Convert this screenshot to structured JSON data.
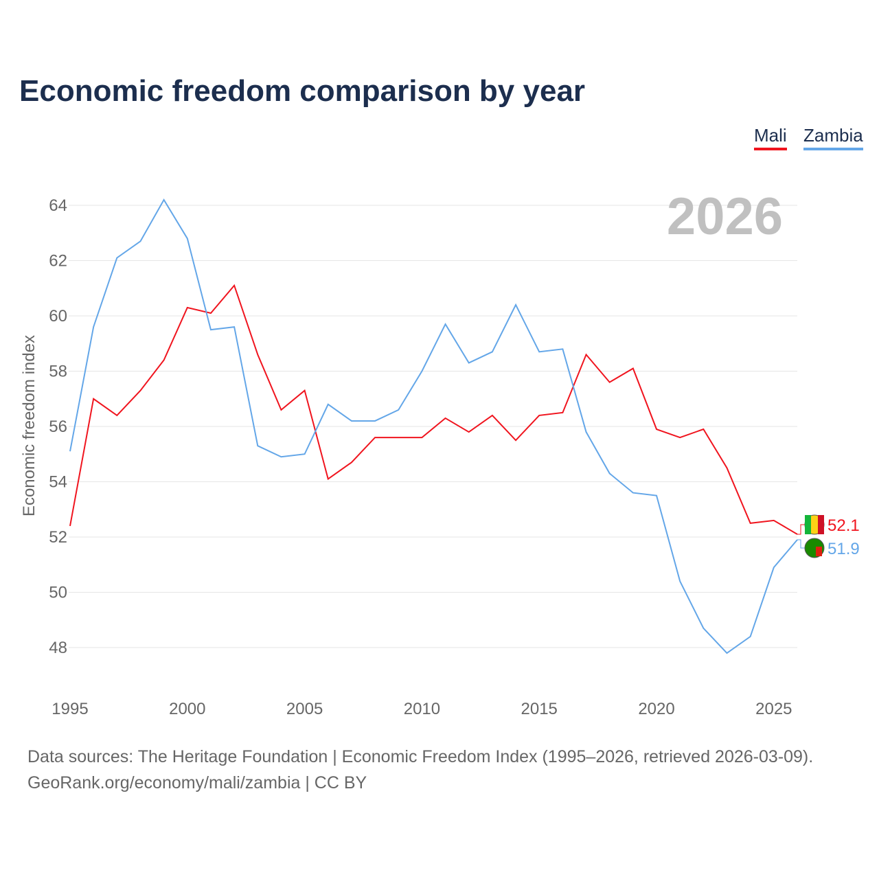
{
  "chart_data": {
    "type": "line",
    "title": "Economic freedom comparison by year",
    "xlabel": "",
    "ylabel": "Economic freedom index",
    "watermark_year": "2026",
    "xlim": [
      1995,
      2026
    ],
    "ylim": [
      47,
      65
    ],
    "x_ticks": [
      1995,
      2000,
      2005,
      2010,
      2015,
      2020,
      2025
    ],
    "y_ticks": [
      48,
      50,
      52,
      54,
      56,
      58,
      60,
      62,
      64
    ],
    "grid": true,
    "legend_position": "top-right",
    "x": [
      1995,
      1996,
      1997,
      1998,
      1999,
      2000,
      2001,
      2002,
      2003,
      2004,
      2005,
      2006,
      2007,
      2008,
      2009,
      2010,
      2011,
      2012,
      2013,
      2014,
      2015,
      2016,
      2017,
      2018,
      2019,
      2020,
      2021,
      2022,
      2023,
      2024,
      2025,
      2026
    ],
    "series": [
      {
        "name": "Mali",
        "color": "#f0141e",
        "end_label": "52.1",
        "values": [
          52.4,
          57.0,
          56.4,
          57.3,
          58.4,
          60.3,
          60.1,
          61.1,
          58.6,
          56.6,
          57.3,
          54.1,
          54.7,
          55.6,
          55.6,
          55.6,
          56.3,
          55.8,
          56.4,
          55.5,
          56.4,
          56.5,
          58.6,
          57.6,
          58.1,
          55.9,
          55.6,
          55.9,
          54.5,
          52.5,
          52.6,
          52.1
        ]
      },
      {
        "name": "Zambia",
        "color": "#63a6e8",
        "end_label": "51.9",
        "values": [
          55.1,
          59.6,
          62.1,
          62.7,
          64.2,
          62.8,
          59.5,
          59.6,
          55.3,
          54.9,
          55.0,
          56.8,
          56.2,
          56.2,
          56.6,
          58.0,
          59.7,
          58.3,
          58.7,
          60.4,
          58.7,
          58.8,
          55.8,
          54.3,
          53.6,
          53.5,
          50.4,
          48.7,
          47.8,
          48.4,
          50.9,
          51.9
        ]
      }
    ]
  },
  "footer": {
    "line1": "Data sources: The Heritage Foundation | Economic Freedom Index (1995–2026, retrieved 2026-03-09).",
    "line2": "GeoRank.org/economy/mali/zambia | CC BY"
  }
}
